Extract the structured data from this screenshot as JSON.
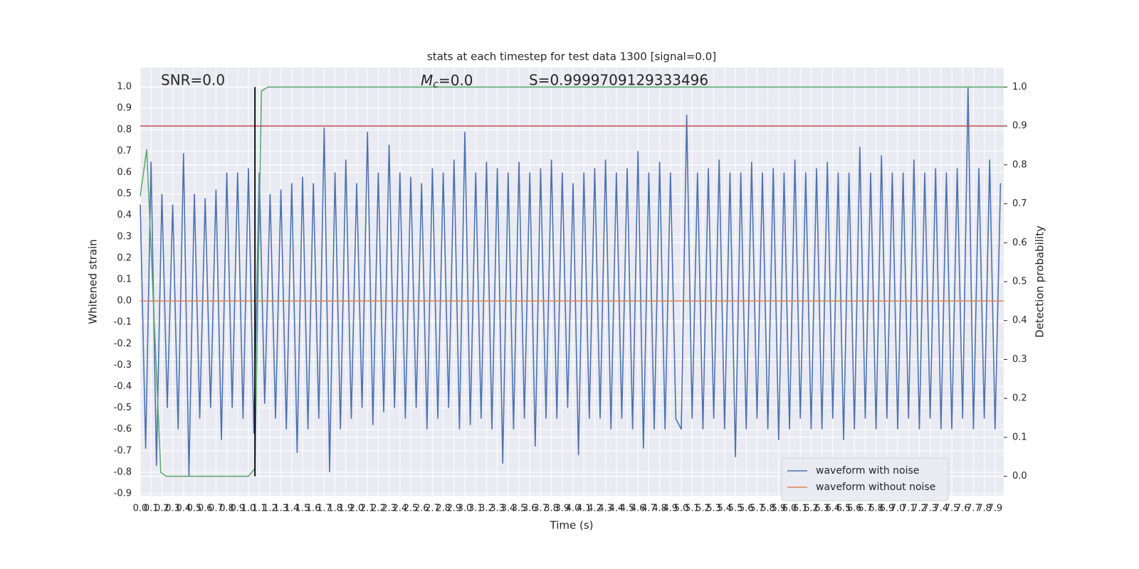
{
  "chart_data": {
    "type": "line",
    "title": "stats at each timestep for test data 1300 [signal=0.0]",
    "xlabel": "Time (s)",
    "ylabel": "Whitened strain",
    "y2label": "Detection probability",
    "annotations": {
      "snr": "SNR=0.0",
      "mc": {
        "symbol": "M",
        "subscript": "c",
        "text": "=0.0"
      },
      "s": "S=0.9999709129333496"
    },
    "xlim": [
      0,
      7.98
    ],
    "ylim": [
      -0.91,
      1.09
    ],
    "y2lim": [
      -0.05,
      1.05
    ],
    "grid": true,
    "legend": "lower right",
    "xticks": [
      {
        "value": 0,
        "label": "0.0"
      },
      0.1,
      0.2,
      0.3,
      0.4,
      0.5,
      0.6,
      0.7,
      0.8,
      0.9,
      {
        "value": 1,
        "label": "1.0"
      },
      1.1,
      1.2,
      1.3,
      1.4,
      1.5,
      1.6,
      1.7,
      1.8,
      1.9,
      {
        "value": 2,
        "label": "2.0"
      },
      2.1,
      2.2,
      2.3,
      2.4,
      2.5,
      2.6,
      2.7,
      2.8,
      2.9,
      {
        "value": 3,
        "label": "3.0"
      },
      3.1,
      3.2,
      3.3,
      3.4,
      3.5,
      3.6,
      3.7,
      3.8,
      3.9,
      {
        "value": 4,
        "label": "4.0"
      },
      4.1,
      4.2,
      4.3,
      4.4,
      4.5,
      4.6,
      4.7,
      4.8,
      4.9,
      {
        "value": 5,
        "label": "5.0"
      },
      5.1,
      5.2,
      5.3,
      5.4,
      5.5,
      5.6,
      5.7,
      5.8,
      5.9,
      {
        "value": 6,
        "label": "6.0"
      },
      6.1,
      6.2,
      6.3,
      6.4,
      6.5,
      6.6,
      6.7,
      6.8,
      6.9,
      {
        "value": 7,
        "label": "7.0"
      },
      7.1,
      7.2,
      7.3,
      7.4,
      7.5,
      7.6,
      7.7,
      7.8,
      7.9
    ],
    "yticks": [
      -0.9,
      -0.8,
      -0.7,
      -0.6,
      -0.5,
      -0.4,
      -0.3,
      -0.2,
      -0.1,
      {
        "value": 0,
        "label": "0.0"
      },
      0.1,
      0.2,
      0.3,
      0.4,
      0.5,
      0.6,
      0.7,
      0.8,
      0.9,
      {
        "value": 1,
        "label": "1.0"
      }
    ],
    "y2ticks": [
      {
        "value": 0,
        "label": "0.0"
      },
      0.1,
      0.2,
      0.3,
      0.4,
      0.5,
      0.6,
      0.7,
      0.8,
      0.9,
      {
        "value": 1,
        "label": "1.0"
      }
    ],
    "series": [
      {
        "name": "waveform with noise",
        "color": "#4c72b0",
        "x": [
          0,
          0.05,
          0.1,
          0.15,
          0.2,
          0.25,
          0.3,
          0.35,
          0.4,
          0.45,
          0.5,
          0.55,
          0.6,
          0.65,
          0.7,
          0.75,
          0.8,
          0.85,
          0.9,
          0.95,
          1,
          1.05,
          1.1,
          1.15,
          1.2,
          1.25,
          1.3,
          1.35,
          1.4,
          1.45,
          1.5,
          1.55,
          1.6,
          1.65,
          1.7,
          1.75,
          1.8,
          1.85,
          1.9,
          1.95,
          2,
          2.05,
          2.1,
          2.15,
          2.2,
          2.25,
          2.3,
          2.35,
          2.4,
          2.45,
          2.5,
          2.55,
          2.6,
          2.65,
          2.7,
          2.75,
          2.8,
          2.85,
          2.9,
          2.95,
          3,
          3.05,
          3.1,
          3.15,
          3.2,
          3.25,
          3.3,
          3.35,
          3.4,
          3.45,
          3.5,
          3.55,
          3.6,
          3.65,
          3.7,
          3.75,
          3.8,
          3.85,
          3.9,
          3.95,
          4,
          4.05,
          4.1,
          4.15,
          4.2,
          4.25,
          4.3,
          4.35,
          4.4,
          4.45,
          4.5,
          4.55,
          4.6,
          4.65,
          4.7,
          4.75,
          4.8,
          4.85,
          4.9,
          4.95,
          5,
          5.05,
          5.1,
          5.15,
          5.2,
          5.25,
          5.3,
          5.35,
          5.4,
          5.45,
          5.5,
          5.55,
          5.6,
          5.65,
          5.7,
          5.75,
          5.8,
          5.85,
          5.9,
          5.95,
          6,
          6.05,
          6.1,
          6.15,
          6.2,
          6.25,
          6.3,
          6.35,
          6.4,
          6.45,
          6.5,
          6.55,
          6.6,
          6.65,
          6.7,
          6.75,
          6.8,
          6.85,
          6.9,
          6.95,
          7,
          7.05,
          7.1,
          7.15,
          7.2,
          7.25,
          7.3,
          7.35,
          7.4,
          7.45,
          7.5,
          7.55,
          7.6,
          7.65,
          7.7,
          7.75,
          7.8,
          7.85,
          7.9,
          7.95
        ],
        "values": [
          0.45,
          -0.69,
          0.65,
          -0.77,
          0.5,
          -0.5,
          0.45,
          -0.6,
          0.69,
          -0.82,
          0.5,
          -0.55,
          0.48,
          -0.5,
          0.52,
          -0.65,
          0.6,
          -0.5,
          0.6,
          -0.55,
          0.62,
          -0.62,
          0.6,
          -0.48,
          0.5,
          -0.55,
          0.52,
          -0.6,
          0.55,
          -0.71,
          0.58,
          -0.6,
          0.55,
          -0.55,
          0.81,
          -0.8,
          0.6,
          -0.6,
          0.66,
          -0.55,
          0.55,
          -0.5,
          0.79,
          -0.58,
          0.6,
          -0.52,
          0.73,
          -0.5,
          0.6,
          -0.55,
          0.58,
          -0.5,
          0.55,
          -0.6,
          0.62,
          -0.55,
          0.6,
          -0.5,
          0.66,
          -0.6,
          0.79,
          -0.58,
          0.6,
          -0.55,
          0.65,
          -0.6,
          0.62,
          -0.76,
          0.6,
          -0.6,
          0.65,
          -0.55,
          0.6,
          -0.68,
          0.62,
          -0.55,
          0.66,
          -0.55,
          0.6,
          -0.5,
          0.55,
          -0.72,
          0.6,
          -0.55,
          0.62,
          -0.55,
          0.66,
          -0.6,
          0.6,
          -0.55,
          0.62,
          -0.6,
          0.7,
          -0.69,
          0.6,
          -0.6,
          0.65,
          -0.6,
          0.6,
          -0.55,
          -0.6,
          0.87,
          -0.55,
          0.6,
          -0.6,
          0.62,
          -0.55,
          0.66,
          -0.6,
          0.6,
          -0.73,
          0.6,
          -0.6,
          0.65,
          -0.55,
          0.6,
          -0.6,
          0.62,
          -0.65,
          0.6,
          -0.6,
          0.66,
          -0.55,
          0.6,
          -0.6,
          0.62,
          -0.6,
          0.65,
          -0.55,
          0.6,
          -0.65,
          0.6,
          -0.6,
          0.72,
          -0.55,
          0.6,
          -0.6,
          0.68,
          -0.55,
          0.6,
          -0.6,
          0.6,
          -0.55,
          0.66,
          -0.6,
          0.6,
          -0.55,
          0.62,
          -0.6,
          0.6,
          -0.6,
          0.62,
          -0.55,
          1.0,
          -0.6,
          0.62,
          -0.55,
          0.66,
          -0.6,
          0.55
        ]
      },
      {
        "name": "waveform without noise",
        "color": "#dd8452",
        "x": [
          0,
          7.98
        ],
        "values": [
          0,
          0
        ]
      },
      {
        "color": "#55a868",
        "axis": "y2",
        "x": [
          0,
          0.06,
          0.19,
          0.24,
          1.0,
          1.06,
          1.12,
          1.18,
          7.98
        ],
        "values": [
          0.72,
          0.84,
          0.01,
          0.0,
          0.0,
          0.02,
          0.99,
          1.0,
          1.0
        ]
      }
    ],
    "hlines": [
      {
        "y": 0.9,
        "axis": "y2",
        "color": "#c44e52"
      }
    ],
    "vlines": [
      {
        "x": 1.06,
        "ymin": 0,
        "ymax": 1,
        "axis": "y2",
        "color": "#000000"
      }
    ]
  }
}
